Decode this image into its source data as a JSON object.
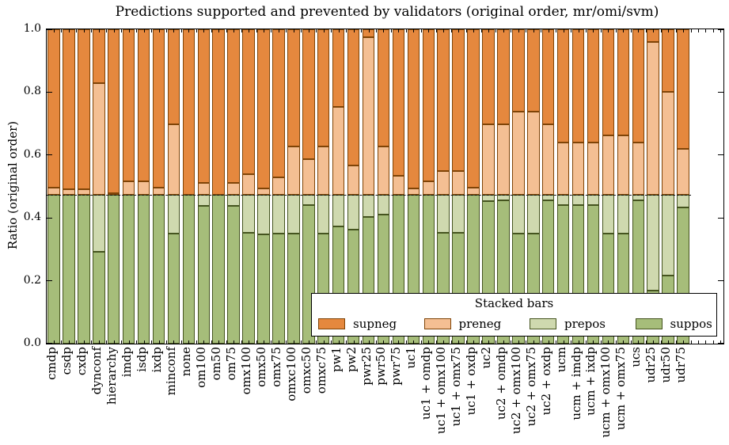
{
  "chart_data": {
    "type": "bar",
    "stacked": true,
    "title": "Predictions supported and prevented by validators (original order, mr/omi/svm)",
    "ylabel": "Ratio (original order)",
    "xlabel": "",
    "ylim": [
      0.0,
      1.0
    ],
    "yticks": [
      "0.0",
      "0.2",
      "0.4",
      "0.6",
      "0.8",
      "1.0"
    ],
    "grid": false,
    "baseline_dashed_y": 0.474,
    "legend": {
      "title": "Stacked bars",
      "position": "lower-right-inside",
      "order": [
        "supneg",
        "preneg",
        "prepos",
        "suppos"
      ]
    },
    "categories": [
      "cmdp",
      "csdp",
      "cxdp",
      "dynconf",
      "hierarchy",
      "imdp",
      "isdp",
      "ixdp",
      "minconf",
      "none",
      "om100",
      "om50",
      "om75",
      "omx100",
      "omx50",
      "omx75",
      "omxc100",
      "omxc50",
      "omxc75",
      "pw1",
      "pw2",
      "pwr25",
      "pwr50",
      "pwr75",
      "uc1",
      "uc1 + omdp",
      "uc1 + omx100",
      "uc1 + omx75",
      "uc1 + oxdp",
      "uc2",
      "uc2 + omdp",
      "uc2 + omx100",
      "uc2 + omx75",
      "uc2 + oxdp",
      "ucm",
      "ucm + imdp",
      "ucm + ixdp",
      "ucm + omx100",
      "ucm + omx75",
      "ucs",
      "udr25",
      "udr50",
      "udr75"
    ],
    "series": [
      {
        "name": "suppos",
        "color": "#a6bd7a",
        "edge": "#45541f",
        "values": [
          0.474,
          0.474,
          0.474,
          0.291,
          0.474,
          0.474,
          0.474,
          0.474,
          0.349,
          0.474,
          0.438,
          0.474,
          0.438,
          0.352,
          0.347,
          0.349,
          0.349,
          0.441,
          0.349,
          0.374,
          0.362,
          0.403,
          0.41,
          0.474,
          0.474,
          0.474,
          0.353,
          0.353,
          0.474,
          0.453,
          0.455,
          0.349,
          0.349,
          0.455,
          0.441,
          0.441,
          0.441,
          0.349,
          0.349,
          0.457,
          0.17,
          0.216,
          0.433
        ]
      },
      {
        "name": "prepos",
        "color": "#cfd9af",
        "edge": "#45541f",
        "values": [
          0,
          0,
          0,
          0.183,
          0,
          0,
          0,
          0,
          0.125,
          0,
          0.036,
          0,
          0.036,
          0.122,
          0.127,
          0.125,
          0.125,
          0.033,
          0.125,
          0.1,
          0.112,
          0.071,
          0.064,
          0,
          0,
          0,
          0.121,
          0.121,
          0,
          0.021,
          0.019,
          0.125,
          0.125,
          0.019,
          0.033,
          0.033,
          0.033,
          0.125,
          0.125,
          0.017,
          0.304,
          0.258,
          0.041
        ]
      },
      {
        "name": "preneg",
        "color": "#f4bf93",
        "edge": "#7f4407",
        "values": [
          0.022,
          0.018,
          0.018,
          0.354,
          0.005,
          0.042,
          0.042,
          0.022,
          0.225,
          0,
          0.038,
          0,
          0.038,
          0.064,
          0.019,
          0.054,
          0.154,
          0.113,
          0.154,
          0.279,
          0.092,
          0.5,
          0.154,
          0.059,
          0.021,
          0.042,
          0.075,
          0.075,
          0.023,
          0.225,
          0.225,
          0.263,
          0.263,
          0.225,
          0.167,
          0.167,
          0.167,
          0.188,
          0.188,
          0.167,
          0.485,
          0.326,
          0.146
        ]
      },
      {
        "name": "supneg",
        "color": "#e5883e",
        "edge": "#7f4407",
        "values": [
          0.504,
          0.508,
          0.508,
          0.172,
          0.521,
          0.484,
          0.484,
          0.504,
          0.301,
          0.526,
          0.488,
          0.526,
          0.488,
          0.462,
          0.507,
          0.472,
          0.372,
          0.413,
          0.372,
          0.247,
          0.434,
          0.026,
          0.372,
          0.467,
          0.505,
          0.484,
          0.451,
          0.451,
          0.503,
          0.301,
          0.301,
          0.263,
          0.263,
          0.301,
          0.359,
          0.359,
          0.359,
          0.338,
          0.338,
          0.359,
          0.041,
          0.2,
          0.38
        ]
      }
    ]
  }
}
